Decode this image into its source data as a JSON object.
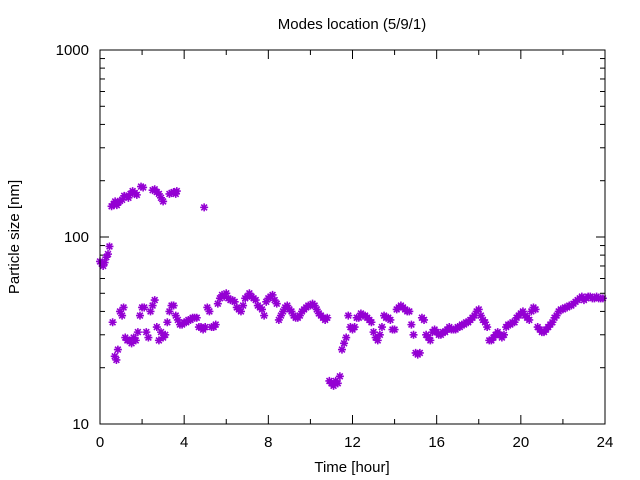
{
  "chart_data": {
    "type": "scatter",
    "title": "Modes location (5/9/1)",
    "xlabel": "Time [hour]",
    "ylabel": "Particle size [nm]",
    "xlim": [
      0,
      24
    ],
    "ylim": [
      10,
      1000
    ],
    "yscale": "log",
    "xticks": [
      0,
      4,
      8,
      12,
      16,
      20,
      24
    ],
    "xtick_labels": [
      "0",
      "4",
      "8",
      "12",
      "16",
      "20",
      "24"
    ],
    "minor_xticks": [
      2,
      6,
      10,
      14,
      18,
      22
    ],
    "yticks": [
      10,
      100,
      1000
    ],
    "ytick_labels": [
      "10",
      "100",
      "1000"
    ],
    "grid": false,
    "legend": "none",
    "marker": "star",
    "marker_color": "#9400d3",
    "series": [
      {
        "points": [
          [
            0.0,
            74
          ],
          [
            0.08,
            72
          ],
          [
            0.15,
            70
          ],
          [
            0.22,
            73
          ],
          [
            0.3,
            78
          ],
          [
            0.38,
            81
          ],
          [
            0.45,
            89
          ],
          [
            0.55,
            146
          ],
          [
            0.65,
            150
          ],
          [
            0.72,
            155
          ],
          [
            0.8,
            148
          ],
          [
            0.88,
            153
          ],
          [
            0.95,
            156
          ],
          [
            1.05,
            158
          ],
          [
            1.15,
            166
          ],
          [
            1.25,
            165
          ],
          [
            1.35,
            162
          ],
          [
            1.45,
            170
          ],
          [
            1.55,
            176
          ],
          [
            1.65,
            172
          ],
          [
            1.75,
            168
          ],
          [
            1.95,
            186
          ],
          [
            2.05,
            184
          ],
          [
            2.5,
            178
          ],
          [
            2.6,
            180
          ],
          [
            2.7,
            174
          ],
          [
            2.8,
            170
          ],
          [
            2.9,
            162
          ],
          [
            3.0,
            155
          ],
          [
            3.3,
            170
          ],
          [
            3.4,
            172
          ],
          [
            3.5,
            174
          ],
          [
            3.6,
            170
          ],
          [
            3.65,
            176
          ],
          [
            4.95,
            144
          ],
          [
            0.6,
            35
          ],
          [
            0.7,
            23
          ],
          [
            0.78,
            22
          ],
          [
            0.85,
            25
          ],
          [
            0.95,
            40
          ],
          [
            1.05,
            38
          ],
          [
            1.12,
            42
          ],
          [
            1.2,
            29
          ],
          [
            1.3,
            28
          ],
          [
            1.4,
            28
          ],
          [
            1.5,
            27
          ],
          [
            1.6,
            29
          ],
          [
            1.7,
            28
          ],
          [
            1.8,
            31
          ],
          [
            1.9,
            38
          ],
          [
            2.0,
            42
          ],
          [
            2.1,
            42
          ],
          [
            2.2,
            31
          ],
          [
            2.3,
            29
          ],
          [
            2.4,
            40
          ],
          [
            2.5,
            43
          ],
          [
            2.6,
            46
          ],
          [
            2.7,
            33
          ],
          [
            2.8,
            28
          ],
          [
            2.9,
            31
          ],
          [
            3.0,
            29
          ],
          [
            3.1,
            30
          ],
          [
            3.2,
            35
          ],
          [
            3.3,
            40
          ],
          [
            3.4,
            43
          ],
          [
            3.5,
            43
          ],
          [
            3.6,
            38
          ],
          [
            3.7,
            36
          ],
          [
            3.8,
            34
          ],
          [
            3.9,
            34
          ],
          [
            4.0,
            35
          ],
          [
            4.1,
            35
          ],
          [
            4.2,
            36
          ],
          [
            4.3,
            36
          ],
          [
            4.4,
            37
          ],
          [
            4.5,
            37
          ],
          [
            4.6,
            37
          ],
          [
            4.7,
            33
          ],
          [
            4.8,
            33
          ],
          [
            4.9,
            32
          ],
          [
            5.0,
            33
          ],
          [
            5.1,
            42
          ],
          [
            5.2,
            40
          ],
          [
            5.3,
            33
          ],
          [
            5.4,
            33
          ],
          [
            5.5,
            34
          ],
          [
            5.6,
            44
          ],
          [
            5.7,
            47
          ],
          [
            5.8,
            49
          ],
          [
            5.9,
            48
          ],
          [
            6.0,
            50
          ],
          [
            6.1,
            47
          ],
          [
            6.2,
            46
          ],
          [
            6.3,
            46
          ],
          [
            6.4,
            45
          ],
          [
            6.5,
            42
          ],
          [
            6.6,
            41
          ],
          [
            6.7,
            40
          ],
          [
            6.8,
            43
          ],
          [
            6.9,
            47
          ],
          [
            7.0,
            48
          ],
          [
            7.1,
            50
          ],
          [
            7.2,
            48
          ],
          [
            7.3,
            47
          ],
          [
            7.4,
            46
          ],
          [
            7.5,
            43
          ],
          [
            7.6,
            42
          ],
          [
            7.7,
            41
          ],
          [
            7.8,
            38
          ],
          [
            7.9,
            45
          ],
          [
            8.0,
            47
          ],
          [
            8.1,
            48
          ],
          [
            8.2,
            49
          ],
          [
            8.3,
            46
          ],
          [
            8.4,
            44
          ],
          [
            8.5,
            36
          ],
          [
            8.6,
            38
          ],
          [
            8.7,
            40
          ],
          [
            8.8,
            42
          ],
          [
            8.9,
            43
          ],
          [
            9.0,
            41
          ],
          [
            9.1,
            40
          ],
          [
            9.2,
            38
          ],
          [
            9.3,
            37
          ],
          [
            9.4,
            37
          ],
          [
            9.5,
            38
          ],
          [
            9.6,
            40
          ],
          [
            9.7,
            41
          ],
          [
            9.8,
            42
          ],
          [
            9.9,
            43
          ],
          [
            10.0,
            43
          ],
          [
            10.1,
            44
          ],
          [
            10.2,
            43
          ],
          [
            10.3,
            41
          ],
          [
            10.4,
            39
          ],
          [
            10.5,
            38
          ],
          [
            10.6,
            37
          ],
          [
            10.7,
            36
          ],
          [
            10.8,
            37
          ],
          [
            10.9,
            17
          ],
          [
            11.0,
            16.5
          ],
          [
            11.1,
            16
          ],
          [
            11.2,
            17
          ],
          [
            11.3,
            16.5
          ],
          [
            11.4,
            18
          ],
          [
            11.5,
            25
          ],
          [
            11.6,
            27
          ],
          [
            11.7,
            29
          ],
          [
            11.8,
            38
          ],
          [
            11.9,
            33
          ],
          [
            12.0,
            32
          ],
          [
            12.1,
            33
          ],
          [
            12.2,
            37
          ],
          [
            12.3,
            37
          ],
          [
            12.4,
            39
          ],
          [
            12.5,
            38
          ],
          [
            12.6,
            38
          ],
          [
            12.7,
            37
          ],
          [
            12.8,
            36
          ],
          [
            12.9,
            35
          ],
          [
            13.0,
            31
          ],
          [
            13.1,
            29
          ],
          [
            13.2,
            28
          ],
          [
            13.3,
            30
          ],
          [
            13.4,
            33
          ],
          [
            13.5,
            38
          ],
          [
            13.6,
            37
          ],
          [
            13.7,
            37
          ],
          [
            13.8,
            36
          ],
          [
            13.9,
            32
          ],
          [
            14.0,
            32
          ],
          [
            14.1,
            41
          ],
          [
            14.2,
            42
          ],
          [
            14.3,
            43
          ],
          [
            14.4,
            42
          ],
          [
            14.5,
            41
          ],
          [
            14.6,
            40
          ],
          [
            14.7,
            40
          ],
          [
            14.8,
            34
          ],
          [
            14.9,
            30
          ],
          [
            15.0,
            24
          ],
          [
            15.1,
            23.5
          ],
          [
            15.2,
            24
          ],
          [
            15.3,
            37
          ],
          [
            15.4,
            36
          ],
          [
            15.5,
            30
          ],
          [
            15.6,
            29
          ],
          [
            15.7,
            28
          ],
          [
            15.8,
            31
          ],
          [
            15.9,
            32
          ],
          [
            16.0,
            31
          ],
          [
            16.1,
            30
          ],
          [
            16.2,
            30
          ],
          [
            16.3,
            31
          ],
          [
            16.4,
            31
          ],
          [
            16.5,
            32
          ],
          [
            16.6,
            33
          ],
          [
            16.7,
            32
          ],
          [
            16.8,
            32
          ],
          [
            16.9,
            32
          ],
          [
            17.0,
            33
          ],
          [
            17.1,
            33
          ],
          [
            17.2,
            34
          ],
          [
            17.3,
            34
          ],
          [
            17.4,
            35
          ],
          [
            17.5,
            35
          ],
          [
            17.6,
            36
          ],
          [
            17.7,
            37
          ],
          [
            17.8,
            38
          ],
          [
            17.9,
            40
          ],
          [
            18.0,
            41
          ],
          [
            18.1,
            38
          ],
          [
            18.2,
            36
          ],
          [
            18.3,
            35
          ],
          [
            18.4,
            33
          ],
          [
            18.5,
            28
          ],
          [
            18.6,
            28
          ],
          [
            18.7,
            29
          ],
          [
            18.8,
            30
          ],
          [
            18.9,
            31
          ],
          [
            19.0,
            30
          ],
          [
            19.1,
            29
          ],
          [
            19.2,
            30
          ],
          [
            19.3,
            33
          ],
          [
            19.4,
            34
          ],
          [
            19.5,
            34
          ],
          [
            19.6,
            35
          ],
          [
            19.7,
            35
          ],
          [
            19.8,
            37
          ],
          [
            19.9,
            38
          ],
          [
            20.0,
            39
          ],
          [
            20.1,
            40
          ],
          [
            20.2,
            38
          ],
          [
            20.3,
            37
          ],
          [
            20.4,
            36
          ],
          [
            20.5,
            40
          ],
          [
            20.6,
            42
          ],
          [
            20.7,
            41
          ],
          [
            20.8,
            33
          ],
          [
            20.9,
            32
          ],
          [
            21.0,
            31
          ],
          [
            21.1,
            31
          ],
          [
            21.2,
            32
          ],
          [
            21.3,
            33
          ],
          [
            21.4,
            34
          ],
          [
            21.5,
            35
          ],
          [
            21.6,
            37
          ],
          [
            21.7,
            38
          ],
          [
            21.8,
            40
          ],
          [
            21.9,
            41
          ],
          [
            22.0,
            41
          ],
          [
            22.1,
            42
          ],
          [
            22.2,
            42
          ],
          [
            22.3,
            43
          ],
          [
            22.4,
            43
          ],
          [
            22.5,
            44
          ],
          [
            22.6,
            45
          ],
          [
            22.7,
            46
          ],
          [
            22.8,
            47
          ],
          [
            22.9,
            48
          ],
          [
            23.0,
            46
          ],
          [
            23.1,
            47
          ],
          [
            23.2,
            48
          ],
          [
            23.3,
            48
          ],
          [
            23.4,
            47
          ],
          [
            23.5,
            47
          ],
          [
            23.6,
            48
          ],
          [
            23.7,
            47
          ],
          [
            23.8,
            47
          ],
          [
            23.9,
            47
          ]
        ]
      }
    ]
  }
}
